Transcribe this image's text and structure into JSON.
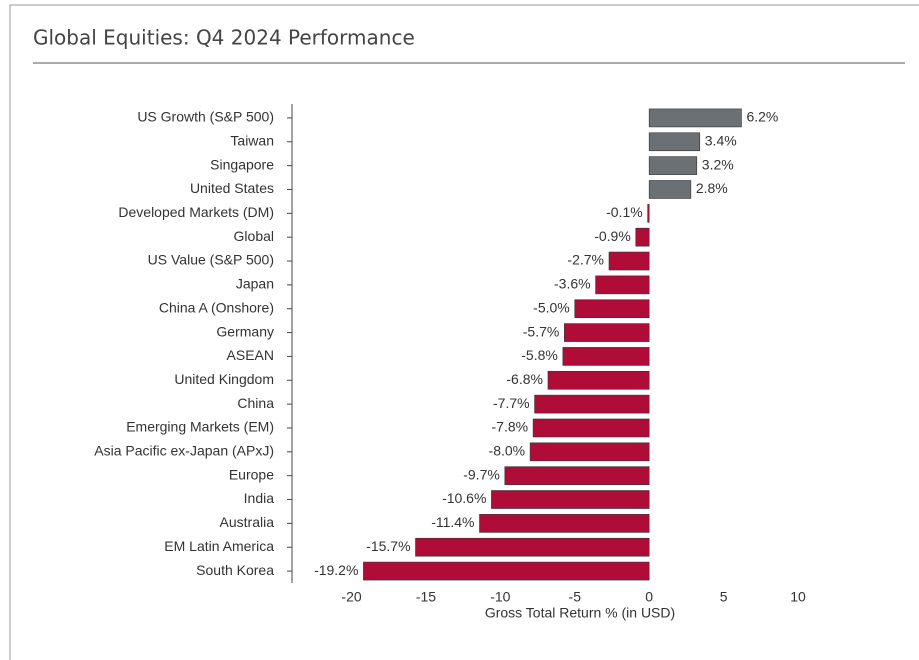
{
  "chart_data": {
    "type": "barh",
    "title": "Global Equities: Q4 2024 Performance",
    "xlabel": "Gross Total Return % (in USD)",
    "categories": [
      "US Growth (S&P 500)",
      "Taiwan",
      "Singapore",
      "United States",
      "Developed Markets (DM)",
      "Global",
      "US Value (S&P 500)",
      "Japan",
      "China A (Onshore)",
      "Germany",
      "ASEAN",
      "United Kingdom",
      "China",
      "Emerging Markets (EM)",
      "Asia Pacific ex-Japan (APxJ)",
      "Europe",
      "India",
      "Australia",
      "EM Latin America",
      "South Korea"
    ],
    "values": [
      6.2,
      3.4,
      3.2,
      2.8,
      -0.1,
      -0.9,
      -2.7,
      -3.6,
      -5.0,
      -5.7,
      -5.8,
      -6.8,
      -7.7,
      -7.8,
      -8.0,
      -9.7,
      -10.6,
      -11.4,
      -15.7,
      -19.2
    ],
    "value_labels": [
      "6.2%",
      "3.4%",
      "3.2%",
      "2.8%",
      "-0.1%",
      "-0.9%",
      "-2.7%",
      "-3.6%",
      "-5.0%",
      "-5.7%",
      "-5.8%",
      "-6.8%",
      "-7.7%",
      "-7.8%",
      "-8.0%",
      "-9.7%",
      "-10.6%",
      "-11.4%",
      "-15.7%",
      "-19.2%"
    ],
    "positive_color": "#6b7075",
    "negative_color": "#b00c38",
    "xlim": [
      -24,
      10
    ],
    "xticks": [
      -20,
      -15,
      -10,
      -5,
      0,
      5,
      10
    ]
  }
}
